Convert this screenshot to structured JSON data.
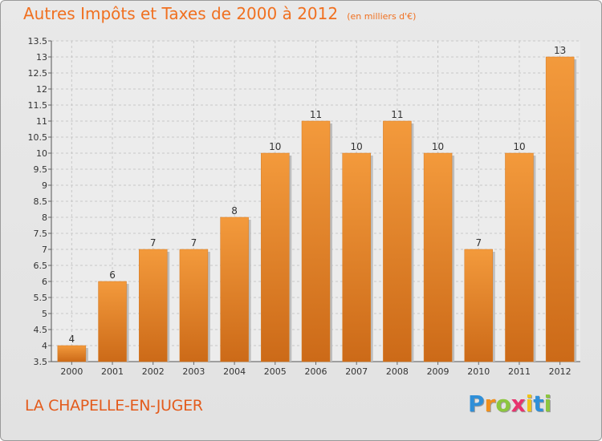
{
  "chart_data": {
    "type": "bar",
    "title": "Autres Impôts et Taxes de 2000 à 2012",
    "unit_note": "(en milliers d'€)",
    "categories": [
      "2000",
      "2001",
      "2002",
      "2003",
      "2004",
      "2005",
      "2006",
      "2007",
      "2008",
      "2009",
      "2010",
      "2011",
      "2012"
    ],
    "values": [
      4,
      6,
      7,
      7,
      8,
      10,
      11,
      10,
      11,
      10,
      7,
      10,
      13
    ],
    "value_labels": [
      "4",
      "6",
      "7",
      "7",
      "8",
      "10",
      "11",
      "10",
      "11",
      "10",
      "7",
      "10",
      "13"
    ],
    "ylim": [
      3.5,
      13.5
    ],
    "yticks": [
      "3.5",
      "4",
      "4.5",
      "5",
      "5.5",
      "6",
      "6.5",
      "7",
      "7.5",
      "8",
      "8.5",
      "9",
      "9.5",
      "10",
      "10.5",
      "11",
      "11.5",
      "12",
      "12.5",
      "13",
      "13.5"
    ],
    "grid": true,
    "bar_color": "#f39a3c",
    "bar_color_dark": "#cc6a18"
  },
  "footer": {
    "commune": "LA CHAPELLE-EN-JUGER",
    "logo_letters": [
      {
        "ch": "P",
        "color": "#2f8fd8"
      },
      {
        "ch": "r",
        "color": "#f0901e"
      },
      {
        "ch": "o",
        "color": "#8cc63f"
      },
      {
        "ch": "x",
        "color": "#e8336e"
      },
      {
        "ch": "i",
        "color": "#f0c419"
      },
      {
        "ch": "t",
        "color": "#2f8fd8"
      },
      {
        "ch": "i",
        "color": "#8cc63f"
      }
    ]
  }
}
